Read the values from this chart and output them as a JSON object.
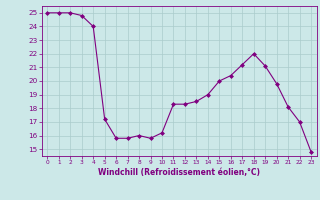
{
  "x": [
    0,
    1,
    2,
    3,
    4,
    5,
    6,
    7,
    8,
    9,
    10,
    11,
    12,
    13,
    14,
    15,
    16,
    17,
    18,
    19,
    20,
    21,
    22,
    23
  ],
  "y": [
    25,
    25,
    25,
    24.8,
    24,
    17.2,
    15.8,
    15.8,
    16.0,
    15.8,
    16.2,
    18.3,
    18.3,
    18.5,
    19.0,
    20.0,
    20.4,
    21.2,
    22.0,
    21.1,
    19.8,
    18.1,
    17.0,
    14.8
  ],
  "line_color": "#800080",
  "marker_color": "#800080",
  "bg_color": "#cce8e8",
  "grid_color": "#aacccc",
  "axis_color": "#800080",
  "tick_color": "#800080",
  "xlabel": "Windchill (Refroidissement éolien,°C)",
  "ylim": [
    14.5,
    25.5
  ],
  "xlim": [
    -0.5,
    23.5
  ],
  "yticks": [
    15,
    16,
    17,
    18,
    19,
    20,
    21,
    22,
    23,
    24,
    25
  ],
  "xticks": [
    0,
    1,
    2,
    3,
    4,
    5,
    6,
    7,
    8,
    9,
    10,
    11,
    12,
    13,
    14,
    15,
    16,
    17,
    18,
    19,
    20,
    21,
    22,
    23
  ]
}
